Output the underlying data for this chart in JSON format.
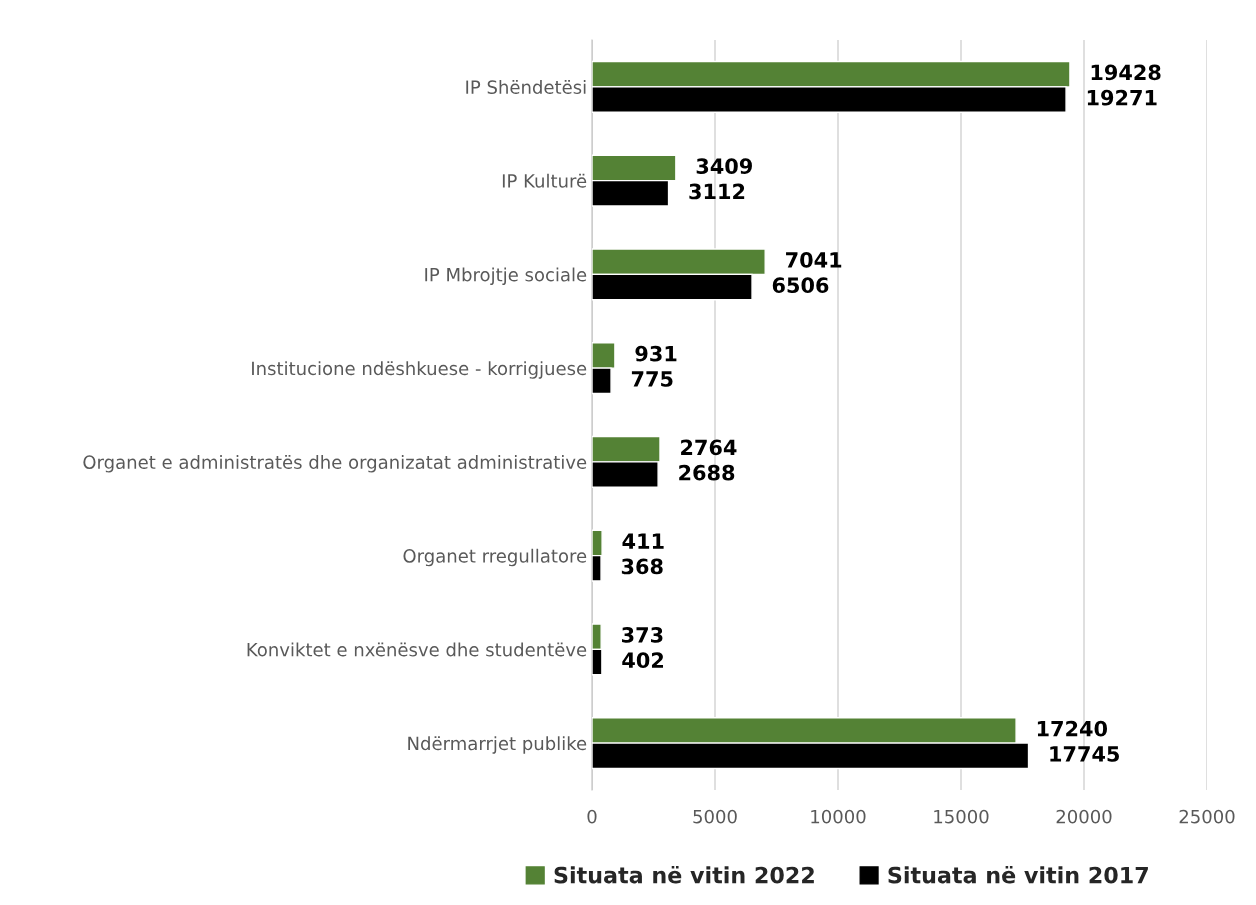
{
  "chart_data": {
    "type": "bar",
    "orientation": "horizontal",
    "categories": [
      "IP Shëndetësi",
      "IP Kulturë",
      "IP Mbrojtje sociale",
      "Institucione ndëshkuese - korrigjuese",
      "Organet e administratës dhe organizatat administrative",
      "Organet rregullatore",
      "Konviktet e nxënësve dhe studentëve",
      "Ndërmarrjet publike"
    ],
    "series": [
      {
        "name": "Situata në vitin 2022",
        "color": "#548235",
        "values": [
          19428,
          3409,
          7041,
          931,
          2764,
          411,
          373,
          17240
        ]
      },
      {
        "name": "Situata në vitin 2017",
        "color": "#000000",
        "values": [
          19271,
          3112,
          6506,
          775,
          2688,
          368,
          402,
          17745
        ]
      }
    ],
    "xlim": [
      0,
      25000
    ],
    "xticks": [
      0,
      5000,
      10000,
      15000,
      20000,
      25000
    ],
    "grid": "x",
    "legend": "bottom",
    "data_labels": true
  }
}
